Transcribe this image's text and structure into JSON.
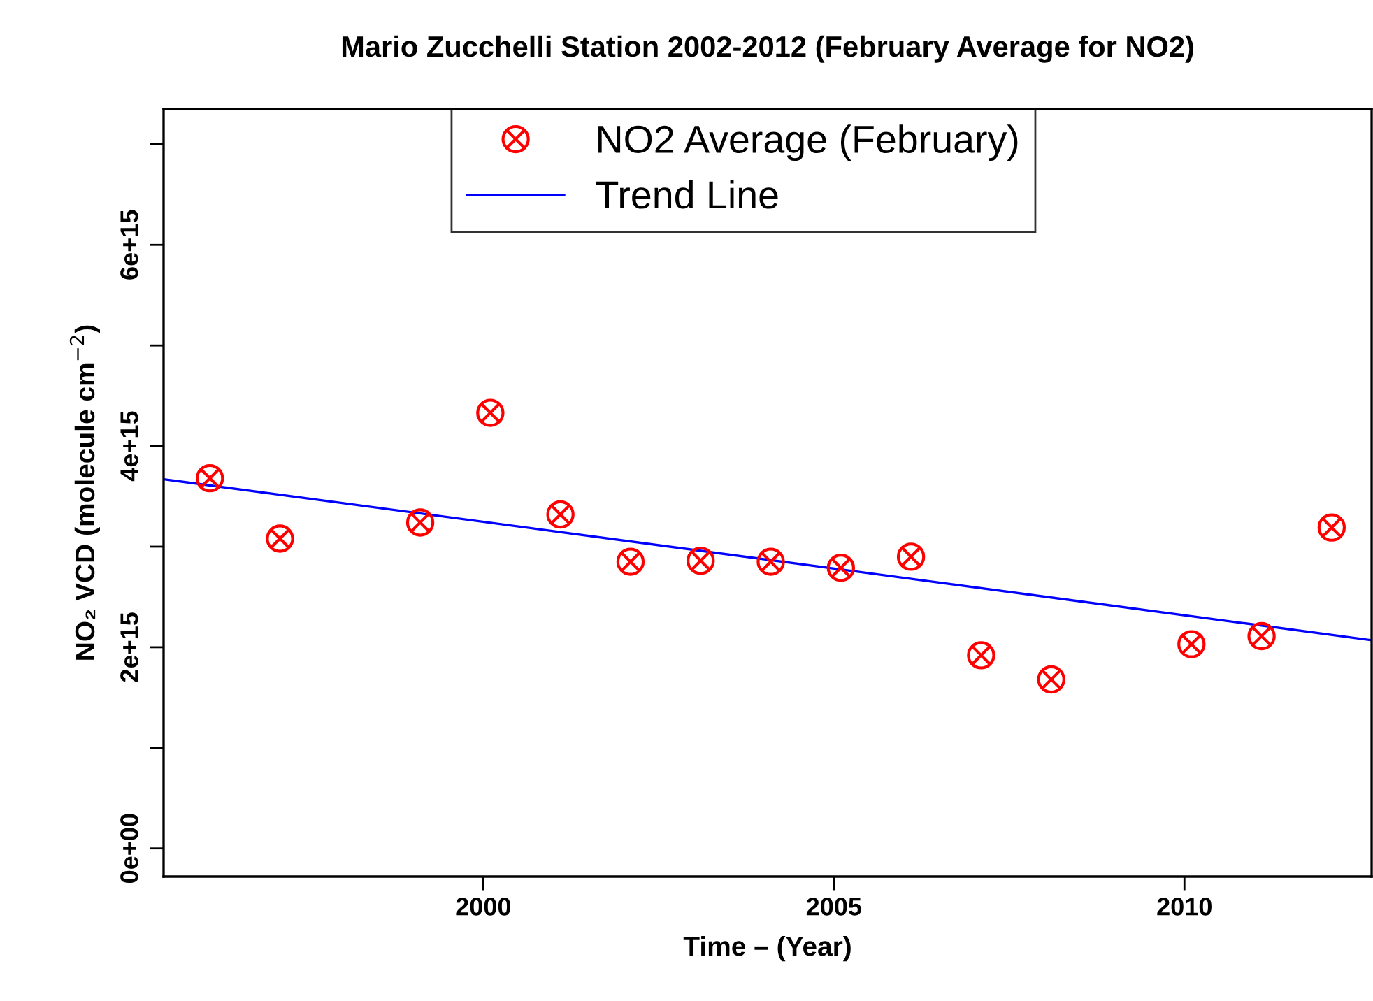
{
  "chart_data": {
    "type": "scatter",
    "title": "Mario Zucchelli Station 2002-2012 (February Average for NO2)",
    "xlabel": "Time – (Year)",
    "ylabel": "NO₂ VCD (molecule cm$^{−2}$)",
    "series": [
      {
        "name": "NO2 Average (February)",
        "color": "#ff0000",
        "marker": "cross",
        "x": [
          1996.1,
          1997.1,
          1999.1,
          2000.1,
          2001.1,
          2002.1,
          2003.1,
          2004.1,
          2005.1,
          2006.1,
          2007.1,
          2008.1,
          2010.1,
          2011.1,
          2012.1
        ],
        "values": [
          3680000000000000.0,
          3080000000000000.0,
          3240000000000000.0,
          4330000000000000.0,
          3320000000000000.0,
          2850000000000000.0,
          2860000000000000.0,
          2850000000000000.0,
          2790000000000000.0,
          2900000000000000.0,
          1920000000000000.0,
          1680000000000000.0,
          2030000000000000.0,
          2110000000000000.0,
          3190000000000000.0
        ]
      },
      {
        "name": "Trend Line",
        "type": "line",
        "color": "#0000ff",
        "line_style": "solid",
        "x": [
          1995.44,
          2012.67
        ],
        "values": [
          3670000000000000.0,
          2070000000000000.0
        ]
      }
    ],
    "xlim": [
      1995.44,
      2012.67
    ],
    "ylim": [
      -280000000000000.0,
      7350000000000000.0
    ],
    "xticks": [
      2000,
      2005,
      2010
    ],
    "yticks": [
      {
        "value": 0,
        "label": "0e+00"
      },
      {
        "value": 1000000000000000.0,
        "label": null
      },
      {
        "value": 2000000000000000.0,
        "label": "2e+15"
      },
      {
        "value": 3000000000000000.0,
        "label": null
      },
      {
        "value": 4000000000000000.0,
        "label": "4e+15"
      },
      {
        "value": 5000000000000000.0,
        "label": null
      },
      {
        "value": 6000000000000000.0,
        "label": "6e+15"
      },
      {
        "value": 7000000000000000.0,
        "label": null
      }
    ],
    "grid": false,
    "legend": "top"
  }
}
